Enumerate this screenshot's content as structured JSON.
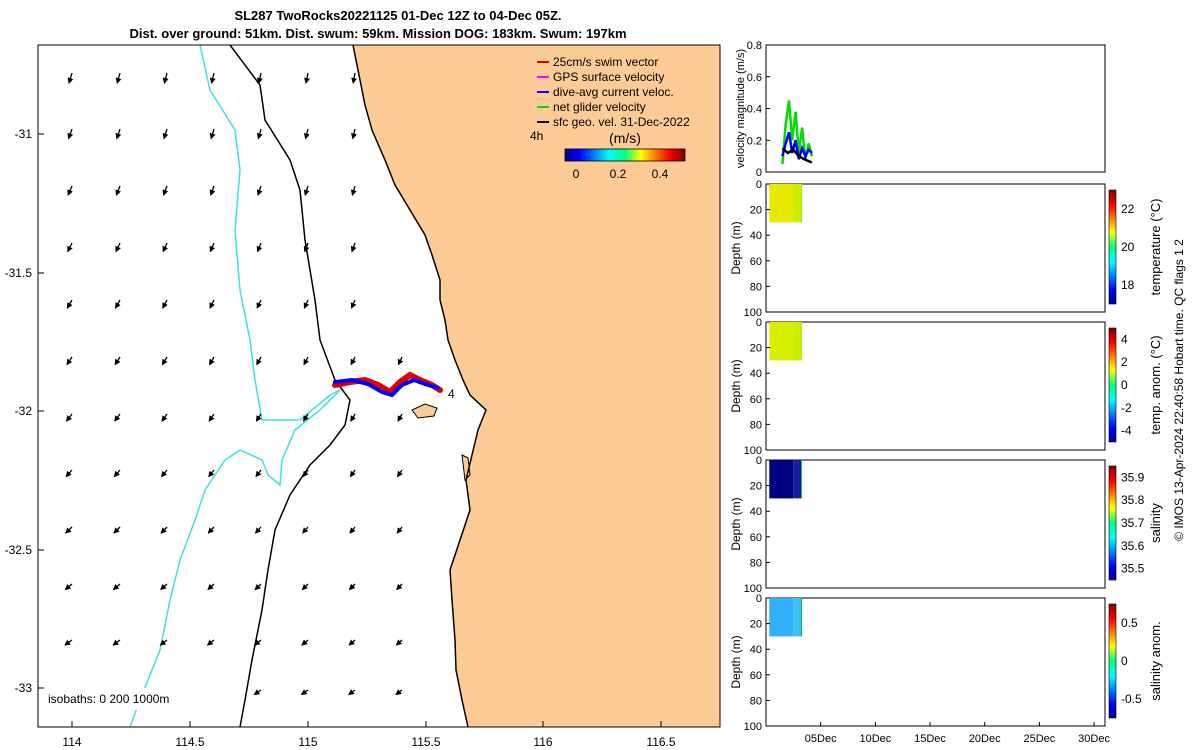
{
  "title": {
    "line1": "SL287 TwoRocks20221125 01-Dec 12Z to 04-Dec 05Z.",
    "line2": "Dist. over ground: 51km. Dist. swum: 59km. Mission DOG: 183km. Swum: 197km"
  },
  "map": {
    "x_ticks": [
      "114",
      "114.5",
      "115",
      "115.5",
      "116",
      "116.5"
    ],
    "y_ticks": [
      "-31",
      "-31.5",
      "-32",
      "-32.5",
      "-33"
    ],
    "legend": [
      {
        "label": "25cm/s swim vector",
        "color": "#e00000"
      },
      {
        "label": "GPS surface velocity",
        "color": "#ff00ff"
      },
      {
        "label": "dive-avg current veloc.",
        "color": "#0000ff"
      },
      {
        "label": "net glider velocity",
        "color": "#00dd00"
      },
      {
        "label": "sfc geo. vel. 31-Dec-2022",
        "color": "#000000"
      }
    ],
    "hour_label": "4h",
    "colorbar_units": "(m/s)",
    "colorbar_ticks": [
      "0",
      "0.2",
      "0.4"
    ],
    "track_label": "4",
    "isobaths_label": "isobaths: 0   200  1000m",
    "land_color": "#fdcb96",
    "isobath_200_color": "#40e0e0"
  },
  "chart_data": [
    {
      "type": "line",
      "panel": "velocity",
      "ylabel": "velocity magnitude (m/s)",
      "ylim": [
        0,
        0.8
      ],
      "y_ticks": [
        "0",
        "0.2",
        "0.4",
        "0.6",
        "0.8"
      ],
      "series": [
        {
          "color": "#00dd00",
          "days": [
            1.5,
            1.8,
            2.1,
            2.4,
            2.7,
            3.0,
            3.3,
            3.6,
            3.9,
            4.2
          ],
          "values": [
            0.05,
            0.3,
            0.45,
            0.2,
            0.38,
            0.12,
            0.28,
            0.08,
            0.18,
            0.1
          ]
        },
        {
          "color": "#0000ff",
          "days": [
            1.5,
            1.8,
            2.1,
            2.4,
            2.7,
            3.0,
            3.3,
            3.6,
            3.9,
            4.2
          ],
          "values": [
            0.1,
            0.18,
            0.25,
            0.12,
            0.2,
            0.08,
            0.15,
            0.1,
            0.14,
            0.12
          ]
        },
        {
          "color": "#000000",
          "days": [
            1.5,
            2.0,
            2.5,
            3.0,
            3.5,
            4.2
          ],
          "values": [
            0.15,
            0.12,
            0.14,
            0.1,
            0.08,
            0.06
          ]
        }
      ]
    },
    {
      "type": "heatmap",
      "panel": "temperature",
      "colorbar_label": "temperature (°C)",
      "colorbar_ticks": [
        "18",
        "20",
        "22"
      ],
      "ylabel": "Depth (m)",
      "y_ticks": [
        "0",
        "20",
        "40",
        "60",
        "80",
        "100"
      ]
    },
    {
      "type": "heatmap",
      "panel": "temp_anom",
      "colorbar_label": "temp. anom. (°C)",
      "colorbar_ticks": [
        "-4",
        "-2",
        "0",
        "2",
        "4"
      ],
      "ylabel": "Depth (m)",
      "y_ticks": [
        "0",
        "20",
        "40",
        "60",
        "80",
        "100"
      ]
    },
    {
      "type": "heatmap",
      "panel": "salinity",
      "colorbar_label": "salinity",
      "colorbar_ticks": [
        "35.5",
        "35.6",
        "35.7",
        "35.8",
        "35.9"
      ],
      "ylabel": "Depth (m)",
      "y_ticks": [
        "0",
        "20",
        "40",
        "60",
        "80",
        "100"
      ]
    },
    {
      "type": "heatmap",
      "panel": "salinity_anom",
      "colorbar_label": "salinity anom.",
      "colorbar_ticks": [
        "-0.5",
        "0",
        "0.5"
      ],
      "ylabel": "Depth (m)",
      "y_ticks": [
        "0",
        "20",
        "40",
        "60",
        "80",
        "100"
      ],
      "x_ticks": [
        "05Dec",
        "10Dec",
        "15Dec",
        "20Dec",
        "25Dec",
        "30Dec"
      ]
    }
  ],
  "footer": "© IMOS 13-Apr-2024 22:40:58 Hobart time. QC flags 1  2"
}
